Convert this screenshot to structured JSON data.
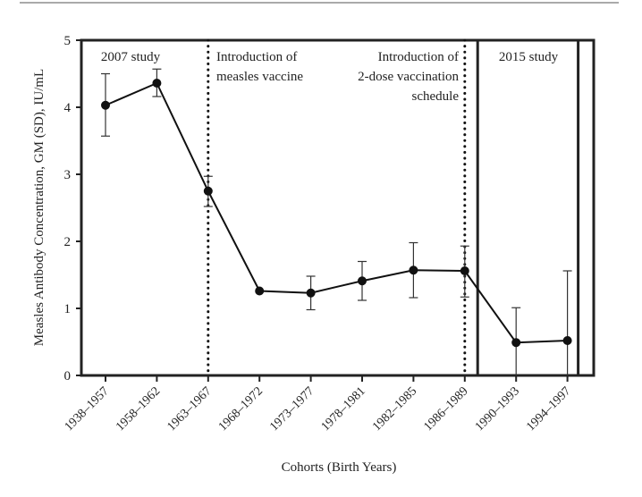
{
  "chart_data": {
    "type": "line",
    "title": "",
    "xlabel": "Cohorts (Birth Years)",
    "ylabel": "Measles Antibody Concentration, GM (SD), IU/mL",
    "ylim": [
      0,
      5
    ],
    "yticks": [
      "0",
      "1",
      "2",
      "3",
      "4",
      "5"
    ],
    "categories": [
      "1938–1957",
      "1958–1962",
      "1963–1967",
      "1968–1972",
      "1973–1977",
      "1978–1981",
      "1982–1985",
      "1986–1989",
      "1990–1993",
      "1994–1997"
    ],
    "series": [
      {
        "name": "GM",
        "values": [
          4.03,
          4.36,
          2.75,
          1.26,
          1.23,
          1.41,
          1.57,
          1.56,
          0.49,
          0.52
        ],
        "err_low": [
          3.57,
          4.16,
          2.52,
          null,
          0.98,
          1.12,
          1.16,
          1.17,
          0.0,
          0.0
        ],
        "err_high": [
          4.5,
          4.57,
          2.97,
          null,
          1.48,
          1.7,
          1.98,
          1.93,
          1.01,
          1.56
        ]
      }
    ],
    "annotations": {
      "study2007": "2007 study",
      "vaccine_line1": "Introduction of",
      "vaccine_line2": "measles vaccine",
      "twodose_line1": "Introduction of",
      "twodose_line2": "2-dose vaccination",
      "twodose_line3": "schedule",
      "study2015": "2015 study"
    },
    "vertical_markers": [
      "1963–1967",
      "1986–1989"
    ],
    "grid": false
  }
}
